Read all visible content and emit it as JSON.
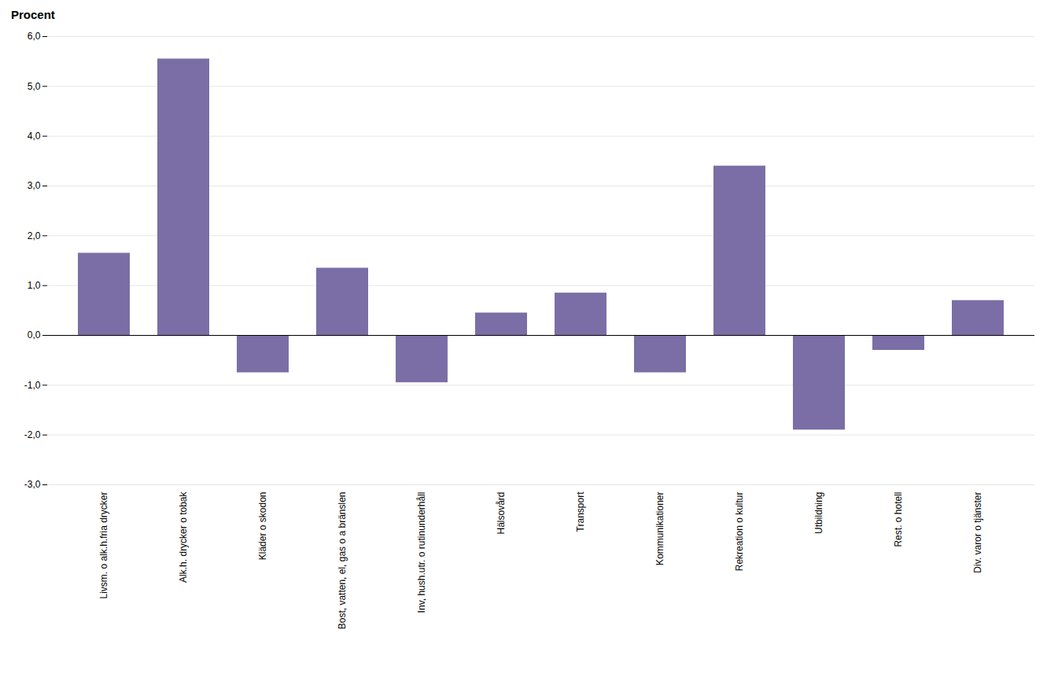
{
  "chart_data": {
    "type": "bar",
    "categories": [
      "Livsm. o alk.h.fria drycker",
      "Alk.h. drycker o tobak",
      "Kläder o skodon",
      "Bost, vatten, el, gas o a bränslen",
      "Inv, hush.utr. o rutinunderhåll",
      "Hälsovård",
      "Transport",
      "Kommunikationer",
      "Rekreation o kultur",
      "Utbildning",
      "Rest. o hotell",
      "Div. varor o tjänster"
    ],
    "values": [
      1.65,
      5.55,
      -0.75,
      1.35,
      -0.95,
      0.45,
      0.85,
      -0.75,
      3.4,
      -1.9,
      -0.3,
      0.7
    ],
    "color": "#7b6ea6",
    "ylabel": "Procent",
    "ylim": [
      -3.0,
      6.0
    ],
    "yticks": [
      {
        "value": -3.0,
        "label": "-3,0"
      },
      {
        "value": -2.0,
        "label": "-2,0"
      },
      {
        "value": -1.0,
        "label": "-1,0"
      },
      {
        "value": 0.0,
        "label": "0,0"
      },
      {
        "value": 1.0,
        "label": "1,0"
      },
      {
        "value": 2.0,
        "label": "2,0"
      },
      {
        "value": 3.0,
        "label": "3,0"
      },
      {
        "value": 4.0,
        "label": "4,0"
      },
      {
        "value": 5.0,
        "label": "5,0"
      },
      {
        "value": 6.0,
        "label": "6,0"
      }
    ],
    "grid": true
  }
}
